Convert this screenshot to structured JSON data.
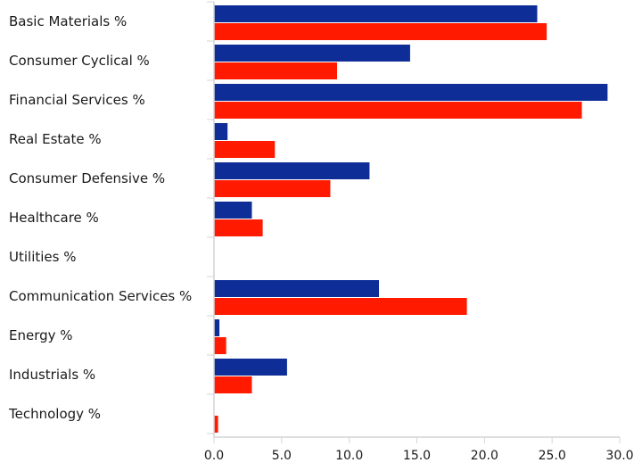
{
  "chart_data": {
    "type": "bar",
    "orientation": "horizontal",
    "categories": [
      "Basic Materials %",
      "Consumer Cyclical %",
      "Financial Services %",
      "Real Estate %",
      "Consumer Defensive %",
      "Healthcare %",
      "Utilities %",
      "Communication Services %",
      "Energy %",
      "Industrials %",
      "Technology %"
    ],
    "series": [
      {
        "color": "#0f2d96",
        "values": [
          23.9,
          14.5,
          29.1,
          1.0,
          11.5,
          2.8,
          0.0,
          12.2,
          0.4,
          5.4,
          0.0
        ]
      },
      {
        "color": "#ff1a00",
        "values": [
          24.6,
          9.1,
          27.2,
          4.5,
          8.6,
          3.6,
          0.0,
          18.7,
          0.9,
          2.8,
          0.3
        ]
      }
    ],
    "xlim": [
      0,
      30
    ],
    "xticks": [
      "0.0",
      "5.0",
      "10.0",
      "15.0",
      "20.0",
      "25.0",
      "30.0"
    ],
    "title": "",
    "xlabel": "",
    "ylabel": "",
    "grid": false,
    "legend": "none"
  }
}
